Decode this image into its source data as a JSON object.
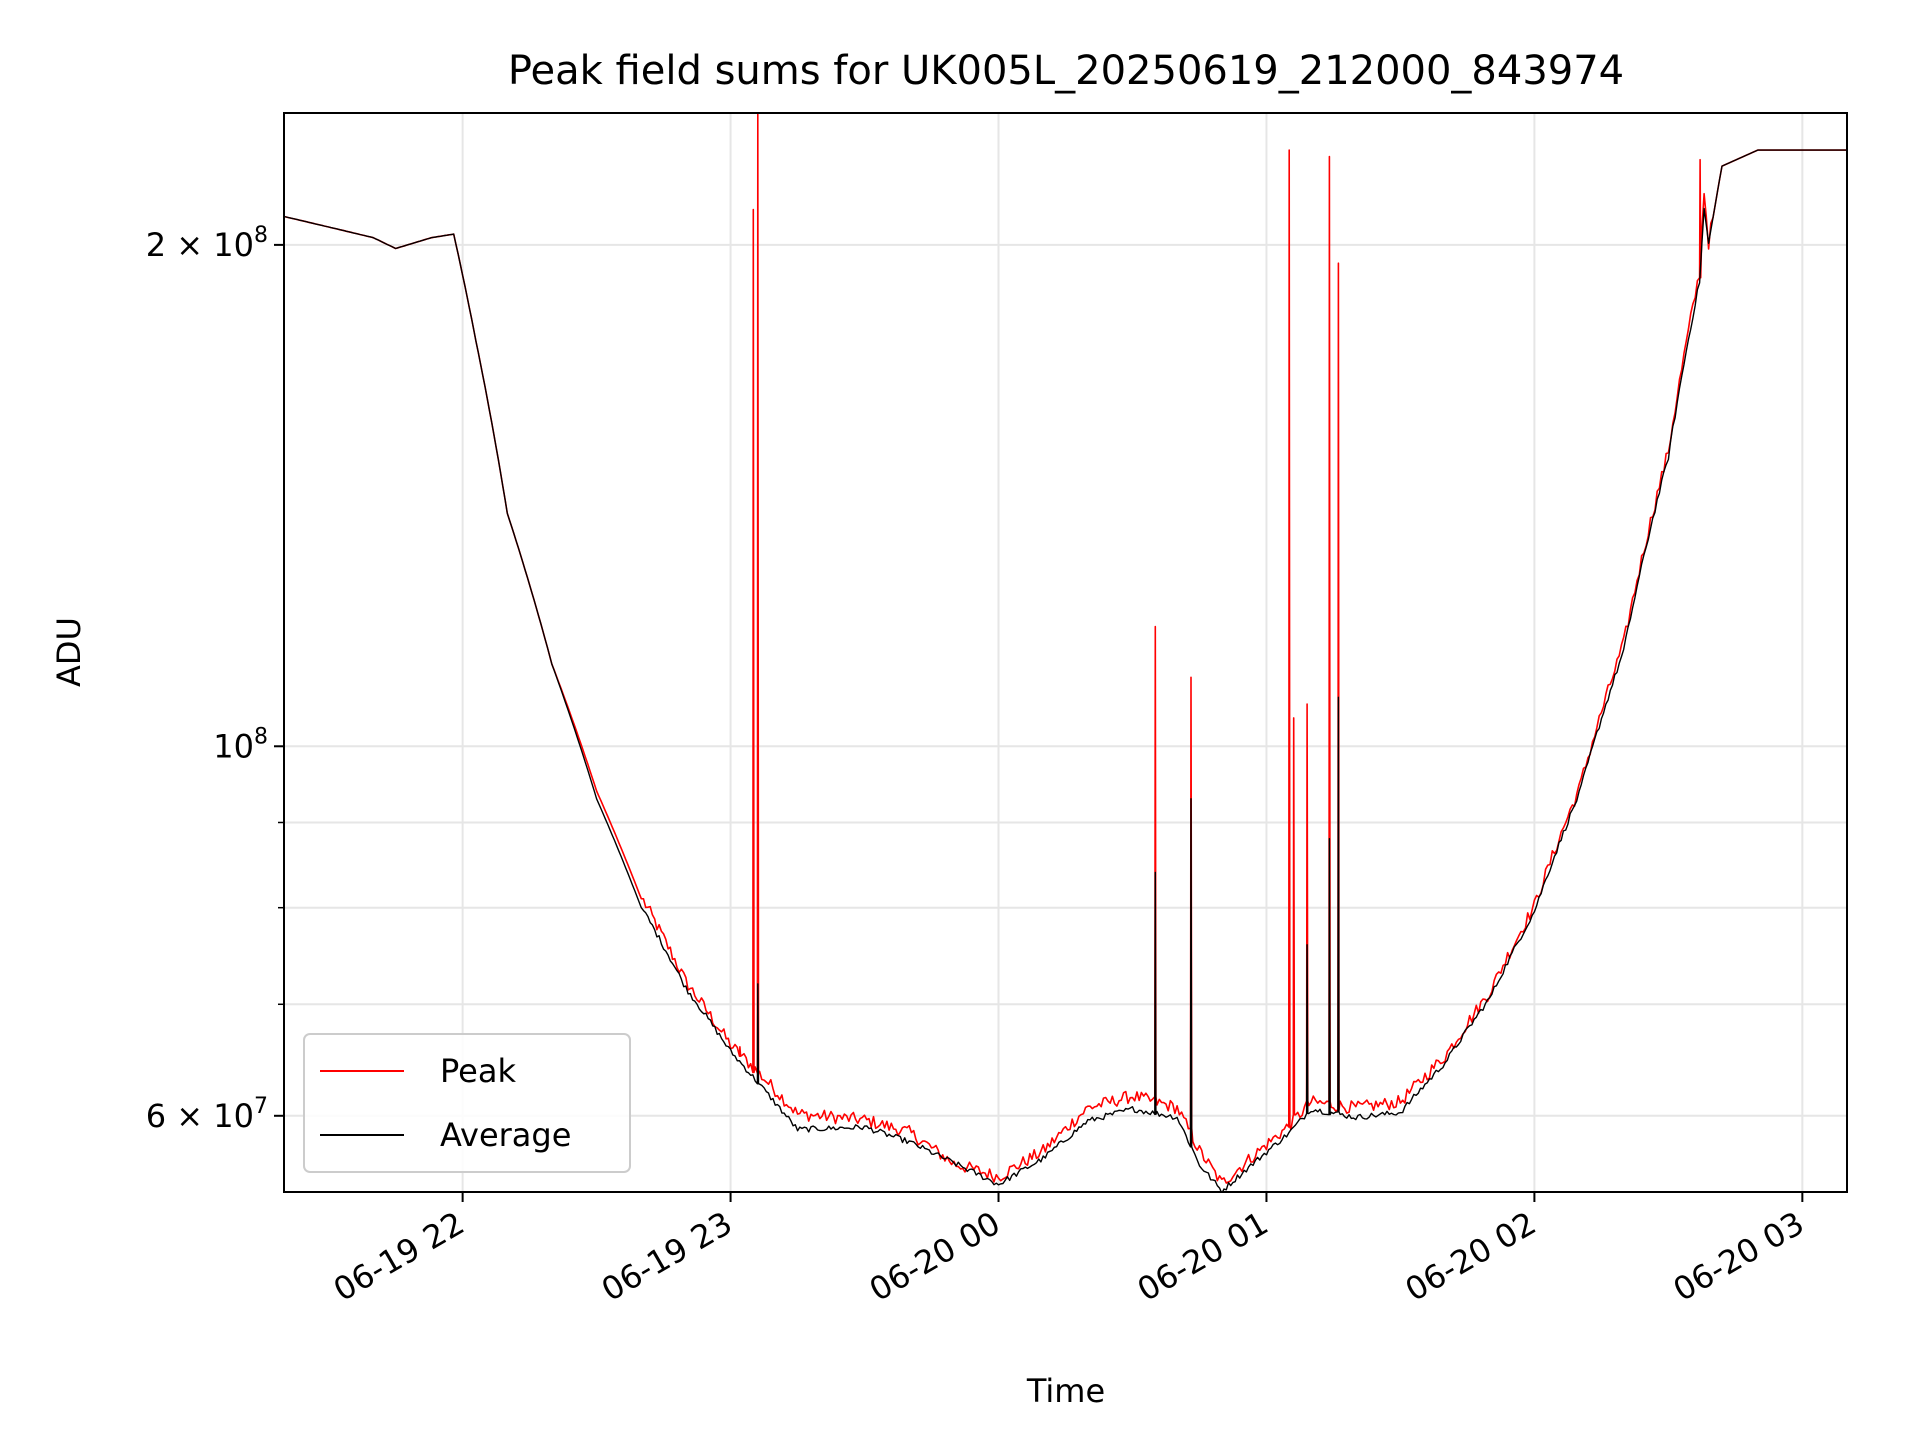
{
  "chart_data": {
    "type": "line",
    "title": "Peak field sums for UK005L_20250619_212000_843974",
    "xlabel": "Time",
    "ylabel": "ADU",
    "yscale": "log",
    "xlim": [
      "2025-06-19 21:20",
      "2025-06-20 03:10"
    ],
    "ylim": [
      54000000,
      240000000
    ],
    "x_ticks": [
      "06-19 22",
      "06-19 23",
      "06-20 00",
      "06-20 01",
      "06-20 02",
      "06-20 03"
    ],
    "y_ticks": [
      {
        "value": 60000000,
        "mantissa": "6",
        "exponent": "7"
      },
      {
        "value": 100000000,
        "mantissa": "",
        "exponent": "8"
      },
      {
        "value": 200000000,
        "mantissa": "2",
        "exponent": "8"
      }
    ],
    "y_minor_ticks": [
      70000000,
      80000000,
      90000000
    ],
    "grid": true,
    "legend_position": "lower-left",
    "series": [
      {
        "name": "Peak",
        "color": "#ff0000",
        "noise": 0.018,
        "points": [
          [
            "2025-06-19 21:20",
            208000000
          ],
          [
            "2025-06-19 21:30",
            205000000
          ],
          [
            "2025-06-19 21:40",
            202000000
          ],
          [
            "2025-06-19 21:45",
            199000000
          ],
          [
            "2025-06-19 21:53",
            202000000
          ],
          [
            "2025-06-19 21:58",
            203000000
          ],
          [
            "2025-06-19 22:03",
            175000000
          ],
          [
            "2025-06-19 22:10",
            138000000
          ],
          [
            "2025-06-19 22:20",
            112000000
          ],
          [
            "2025-06-19 22:30",
            94000000
          ],
          [
            "2025-06-19 22:40",
            81000000
          ],
          [
            "2025-06-19 22:50",
            72000000
          ],
          [
            "2025-06-19 23:00",
            66000000
          ],
          [
            "2025-06-19 23:10",
            62000000
          ],
          [
            "2025-06-19 23:15",
            60000000
          ],
          [
            "2025-06-19 23:30",
            59500000
          ],
          [
            "2025-06-19 23:40",
            58500000
          ],
          [
            "2025-06-19 23:50",
            56000000
          ],
          [
            "2025-06-20 00:00",
            55000000
          ],
          [
            "2025-06-20 00:10",
            57000000
          ],
          [
            "2025-06-20 00:20",
            60500000
          ],
          [
            "2025-06-20 00:30",
            61500000
          ],
          [
            "2025-06-20 00:40",
            60500000
          ],
          [
            "2025-06-20 00:45",
            57000000
          ],
          [
            "2025-06-20 00:50",
            54500000
          ],
          [
            "2025-06-20 00:55",
            56000000
          ],
          [
            "2025-06-20 01:05",
            59000000
          ],
          [
            "2025-06-20 01:10",
            61000000
          ],
          [
            "2025-06-20 01:20",
            60500000
          ],
          [
            "2025-06-20 01:30",
            61000000
          ],
          [
            "2025-06-20 01:40",
            65000000
          ],
          [
            "2025-06-20 01:50",
            71000000
          ],
          [
            "2025-06-20 02:00",
            80000000
          ],
          [
            "2025-06-20 02:10",
            94000000
          ],
          [
            "2025-06-20 02:20",
            115000000
          ],
          [
            "2025-06-20 02:30",
            150000000
          ],
          [
            "2025-06-20 02:37",
            192000000
          ],
          [
            "2025-06-20 02:38",
            215000000
          ],
          [
            "2025-06-20 02:39",
            200000000
          ],
          [
            "2025-06-20 02:42",
            223000000
          ],
          [
            "2025-06-20 02:50",
            228000000
          ],
          [
            "2025-06-20 03:10",
            228000000
          ]
        ],
        "spikes": [
          [
            "2025-06-19 23:02",
            66000000
          ],
          [
            "2025-06-19 23:05",
            210000000
          ],
          [
            "2025-06-19 23:06",
            240000000
          ],
          [
            "2025-06-20 00:35",
            118000000
          ],
          [
            "2025-06-20 00:43",
            110000000
          ],
          [
            "2025-06-20 01:05",
            228000000
          ],
          [
            "2025-06-20 01:06",
            104000000
          ],
          [
            "2025-06-20 01:09",
            106000000
          ],
          [
            "2025-06-20 01:09",
            69000000
          ],
          [
            "2025-06-20 01:14",
            226000000
          ],
          [
            "2025-06-20 01:16",
            195000000
          ],
          [
            "2025-06-20 02:37",
            225000000
          ]
        ]
      },
      {
        "name": "Average",
        "color": "#000000",
        "noise": 0.008,
        "points": [
          [
            "2025-06-19 21:20",
            208000000
          ],
          [
            "2025-06-19 21:30",
            205000000
          ],
          [
            "2025-06-19 21:40",
            202000000
          ],
          [
            "2025-06-19 21:45",
            199000000
          ],
          [
            "2025-06-19 21:53",
            202000000
          ],
          [
            "2025-06-19 21:58",
            203000000
          ],
          [
            "2025-06-19 22:03",
            175000000
          ],
          [
            "2025-06-19 22:10",
            138000000
          ],
          [
            "2025-06-19 22:20",
            112000000
          ],
          [
            "2025-06-19 22:30",
            93000000
          ],
          [
            "2025-06-19 22:40",
            80000000
          ],
          [
            "2025-06-19 22:50",
            71500000
          ],
          [
            "2025-06-19 23:00",
            65500000
          ],
          [
            "2025-06-19 23:10",
            61000000
          ],
          [
            "2025-06-19 23:15",
            58800000
          ],
          [
            "2025-06-19 23:30",
            59000000
          ],
          [
            "2025-06-19 23:40",
            57800000
          ],
          [
            "2025-06-20 00:00",
            54500000
          ],
          [
            "2025-06-20 00:10",
            56500000
          ],
          [
            "2025-06-20 00:20",
            59500000
          ],
          [
            "2025-06-20 00:30",
            60500000
          ],
          [
            "2025-06-20 00:40",
            59800000
          ],
          [
            "2025-06-20 00:45",
            56000000
          ],
          [
            "2025-06-20 00:50",
            54000000
          ],
          [
            "2025-06-20 00:55",
            55500000
          ],
          [
            "2025-06-20 01:05",
            58500000
          ],
          [
            "2025-06-20 01:10",
            60500000
          ],
          [
            "2025-06-20 01:20",
            59800000
          ],
          [
            "2025-06-20 01:30",
            60200000
          ],
          [
            "2025-06-20 01:40",
            64500000
          ],
          [
            "2025-06-20 01:50",
            70500000
          ],
          [
            "2025-06-20 02:00",
            79500000
          ],
          [
            "2025-06-20 02:10",
            93500000
          ],
          [
            "2025-06-20 02:20",
            114000000
          ],
          [
            "2025-06-20 02:30",
            149000000
          ],
          [
            "2025-06-20 02:37",
            190000000
          ],
          [
            "2025-06-20 02:38",
            210000000
          ],
          [
            "2025-06-20 02:39",
            200000000
          ],
          [
            "2025-06-20 02:42",
            223000000
          ],
          [
            "2025-06-20 02:50",
            228000000
          ],
          [
            "2025-06-20 03:10",
            228000000
          ]
        ],
        "spikes": [
          [
            "2025-06-19 23:06",
            72000000
          ],
          [
            "2025-06-20 00:35",
            84000000
          ],
          [
            "2025-06-20 00:43",
            93000000
          ],
          [
            "2025-06-20 01:09",
            76000000
          ],
          [
            "2025-06-20 01:14",
            88000000
          ],
          [
            "2025-06-20 01:16",
            107000000
          ]
        ]
      }
    ]
  }
}
